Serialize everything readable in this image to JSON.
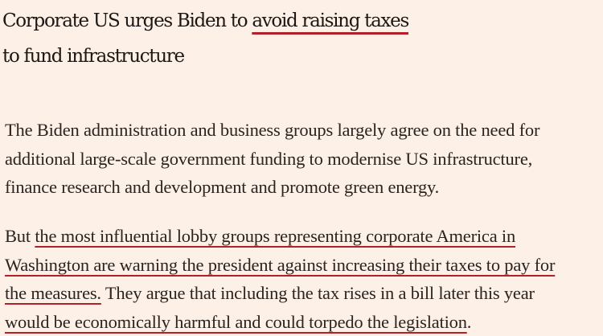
{
  "article": {
    "headline": {
      "line1_plain": "Corporate US urges Biden to ",
      "line1_underlined": "avoid raising taxes",
      "line2": "to fund infrastructure"
    },
    "paragraph1": {
      "line1": "The Biden administration and business groups largely agree on the need for",
      "line2": "additional large-scale government funding to modernise US infrastructure,",
      "line3": "finance research and development and promote green energy."
    },
    "paragraph2": {
      "line1_plain": "But ",
      "line1_underlined": "the most influential lobby groups representing corporate America in",
      "line2_underlined": "Washington are warning the president against increasing their taxes to pay for",
      "line3_underlined": "the measures.",
      "line3_plain": " They argue that including the tax rises in a bill later this year",
      "line4_underlined": "would be economically harmful and could torpedo the legislation",
      "line4_plain": "."
    },
    "colors": {
      "background": "#fdf0e6",
      "text": "#1f1a17",
      "underline_accent": "#b3202a"
    }
  }
}
